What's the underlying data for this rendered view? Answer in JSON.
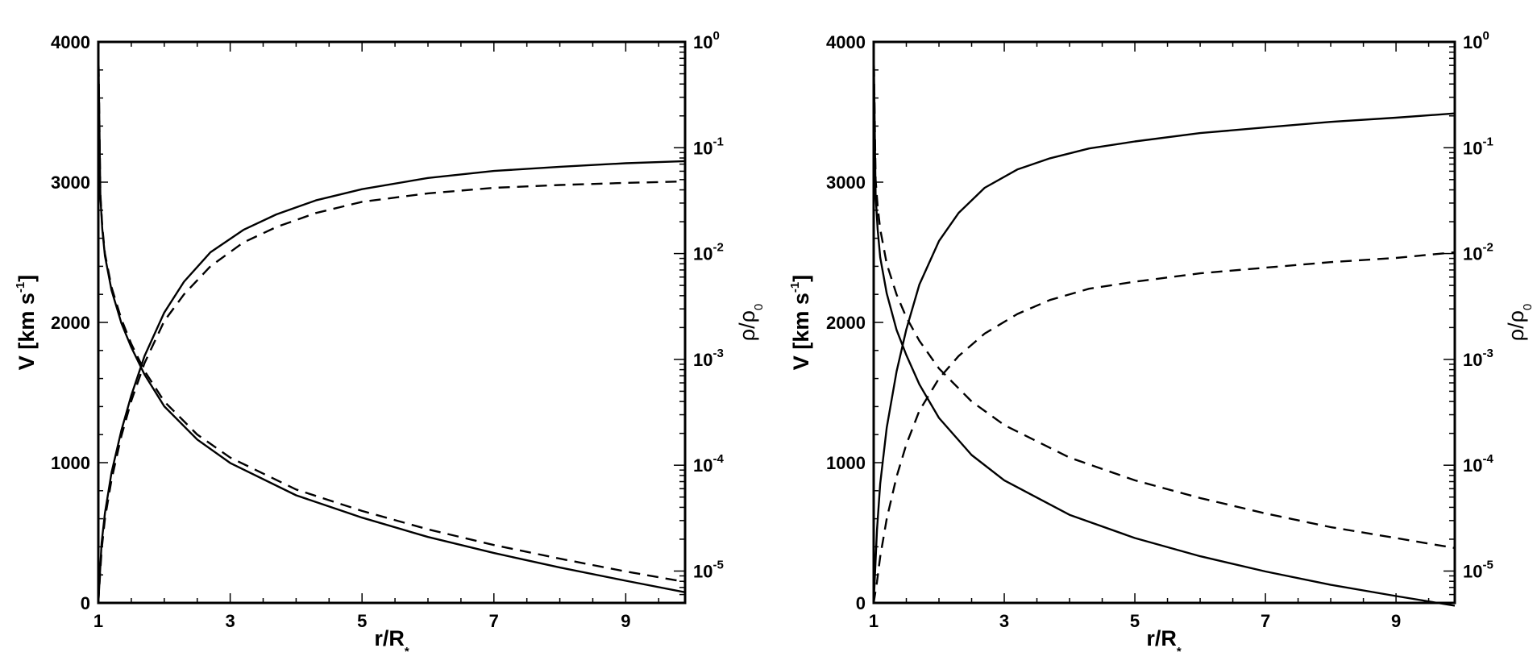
{
  "chart_data": [
    {
      "type": "line",
      "panel": "left",
      "xlabel": "r/R",
      "xlabel_sub": "*",
      "ylabel_left": "V [km s",
      "ylabel_left_sup": "-1",
      "ylabel_left_end": "]",
      "ylabel_right": "ρ/ρ",
      "ylabel_right_sub": "0",
      "xlim": [
        1,
        9.9
      ],
      "ylim_left": [
        0,
        4000
      ],
      "ylim_right": [
        5e-06,
        1
      ],
      "right_scale": "log",
      "x_ticks": [
        "1",
        "3",
        "5",
        "7",
        "9"
      ],
      "y_left_ticks": [
        "0",
        "1000",
        "2000",
        "3000",
        "4000"
      ],
      "y_right_ticks": [
        {
          "base": "10",
          "exp": "0"
        },
        {
          "base": "10",
          "exp": "-1"
        },
        {
          "base": "10",
          "exp": "-2"
        },
        {
          "base": "10",
          "exp": "-3"
        },
        {
          "base": "10",
          "exp": "-4"
        },
        {
          "base": "10",
          "exp": "-5"
        }
      ],
      "series": [
        {
          "style": "solid",
          "axis": "left",
          "x": [
            1.0,
            1.05,
            1.1,
            1.2,
            1.35,
            1.5,
            1.7,
            2.0,
            2.3,
            2.7,
            3.2,
            3.7,
            4.3,
            5.0,
            6.0,
            7.0,
            8.0,
            9.0,
            9.9
          ],
          "y": [
            0,
            430,
            640,
            930,
            1230,
            1480,
            1760,
            2070,
            2290,
            2500,
            2660,
            2770,
            2870,
            2950,
            3030,
            3080,
            3110,
            3135,
            3150
          ]
        },
        {
          "style": "dashed",
          "axis": "left",
          "x": [
            1.0,
            1.05,
            1.1,
            1.2,
            1.35,
            1.5,
            1.7,
            2.0,
            2.3,
            2.7,
            3.2,
            3.7,
            4.3,
            5.0,
            6.0,
            7.0,
            8.0,
            9.0,
            9.9
          ],
          "y": [
            0,
            380,
            600,
            880,
            1190,
            1440,
            1710,
            2010,
            2200,
            2400,
            2570,
            2680,
            2780,
            2860,
            2920,
            2960,
            2980,
            2995,
            3005
          ]
        },
        {
          "style": "solid",
          "axis": "right",
          "x": [
            1.0,
            1.03,
            1.06,
            1.1,
            1.2,
            1.35,
            1.5,
            1.7,
            2.0,
            2.5,
            3.0,
            4.0,
            5.0,
            6.0,
            7.0,
            8.0,
            9.0,
            9.9
          ],
          "y": [
            0.9,
            0.035,
            0.017,
            0.0095,
            0.0045,
            0.0022,
            0.0013,
            0.00072,
            0.00036,
            0.000175,
            0.000105,
            5.2e-05,
            3.2e-05,
            2.1e-05,
            1.48e-05,
            1.08e-05,
            8.1e-06,
            6.3e-06
          ]
        },
        {
          "style": "dashed",
          "axis": "right",
          "x": [
            1.0,
            1.03,
            1.06,
            1.1,
            1.2,
            1.35,
            1.5,
            1.7,
            2.0,
            2.5,
            3.0,
            4.0,
            5.0,
            6.0,
            7.0,
            8.0,
            9.0,
            9.9
          ],
          "y": [
            0.9,
            0.037,
            0.018,
            0.01,
            0.0048,
            0.0024,
            0.0014,
            0.00078,
            0.0004,
            0.000195,
            0.000118,
            5.9e-05,
            3.7e-05,
            2.48e-05,
            1.76e-05,
            1.31e-05,
            9.9e-06,
            7.9e-06
          ]
        }
      ]
    },
    {
      "type": "line",
      "panel": "right",
      "xlabel": "r/R",
      "xlabel_sub": "*",
      "ylabel_left": "V [km s",
      "ylabel_left_sup": "-1",
      "ylabel_left_end": "]",
      "ylabel_right": "ρ/ρ",
      "ylabel_right_sub": "0",
      "xlim": [
        1,
        9.9
      ],
      "ylim_left": [
        0,
        4000
      ],
      "ylim_right": [
        5e-06,
        1
      ],
      "right_scale": "log",
      "x_ticks": [
        "1",
        "3",
        "5",
        "7",
        "9"
      ],
      "y_left_ticks": [
        "0",
        "1000",
        "2000",
        "3000",
        "4000"
      ],
      "y_right_ticks": [
        {
          "base": "10",
          "exp": "0"
        },
        {
          "base": "10",
          "exp": "-1"
        },
        {
          "base": "10",
          "exp": "-2"
        },
        {
          "base": "10",
          "exp": "-3"
        },
        {
          "base": "10",
          "exp": "-4"
        },
        {
          "base": "10",
          "exp": "-5"
        }
      ],
      "series": [
        {
          "style": "solid",
          "axis": "left",
          "x": [
            1.0,
            1.05,
            1.1,
            1.2,
            1.35,
            1.5,
            1.7,
            2.0,
            2.3,
            2.7,
            3.2,
            3.7,
            4.3,
            5.0,
            6.0,
            7.0,
            8.0,
            9.0,
            9.9
          ],
          "y": [
            0,
            520,
            850,
            1250,
            1650,
            1950,
            2270,
            2580,
            2780,
            2960,
            3090,
            3170,
            3240,
            3290,
            3350,
            3390,
            3430,
            3460,
            3490
          ]
        },
        {
          "style": "dashed",
          "axis": "left",
          "x": [
            1.0,
            1.05,
            1.1,
            1.2,
            1.35,
            1.5,
            1.7,
            2.0,
            2.3,
            2.7,
            3.2,
            3.7,
            4.3,
            5.0,
            6.0,
            7.0,
            8.0,
            9.0,
            9.9
          ],
          "y": [
            0,
            150,
            330,
            600,
            900,
            1130,
            1370,
            1600,
            1760,
            1920,
            2060,
            2160,
            2240,
            2290,
            2350,
            2390,
            2430,
            2460,
            2500
          ]
        },
        {
          "style": "solid",
          "axis": "right",
          "x": [
            1.0,
            1.03,
            1.06,
            1.1,
            1.2,
            1.35,
            1.5,
            1.7,
            2.0,
            2.5,
            3.0,
            4.0,
            5.0,
            6.0,
            7.0,
            8.0,
            9.0,
            9.9
          ],
          "y": [
            0.9,
            0.036,
            0.017,
            0.0092,
            0.0042,
            0.0019,
            0.0011,
            0.00058,
            0.00028,
            0.000125,
            7.2e-05,
            3.4e-05,
            2.05e-05,
            1.38e-05,
            9.9e-06,
            7.4e-06,
            5.8e-06,
            4.7e-06
          ]
        },
        {
          "style": "dashed",
          "axis": "right",
          "x": [
            1.0,
            1.03,
            1.06,
            1.1,
            1.2,
            1.35,
            1.5,
            1.7,
            2.0,
            2.5,
            3.0,
            4.0,
            5.0,
            6.0,
            7.0,
            8.0,
            9.0,
            9.9
          ],
          "y": [
            0.9,
            0.05,
            0.028,
            0.017,
            0.008,
            0.0041,
            0.0025,
            0.0015,
            0.00082,
            0.0004,
            0.00024,
            0.000118,
            7.2e-05,
            4.9e-05,
            3.5e-05,
            2.6e-05,
            2.05e-05,
            1.65e-05
          ]
        }
      ]
    }
  ]
}
